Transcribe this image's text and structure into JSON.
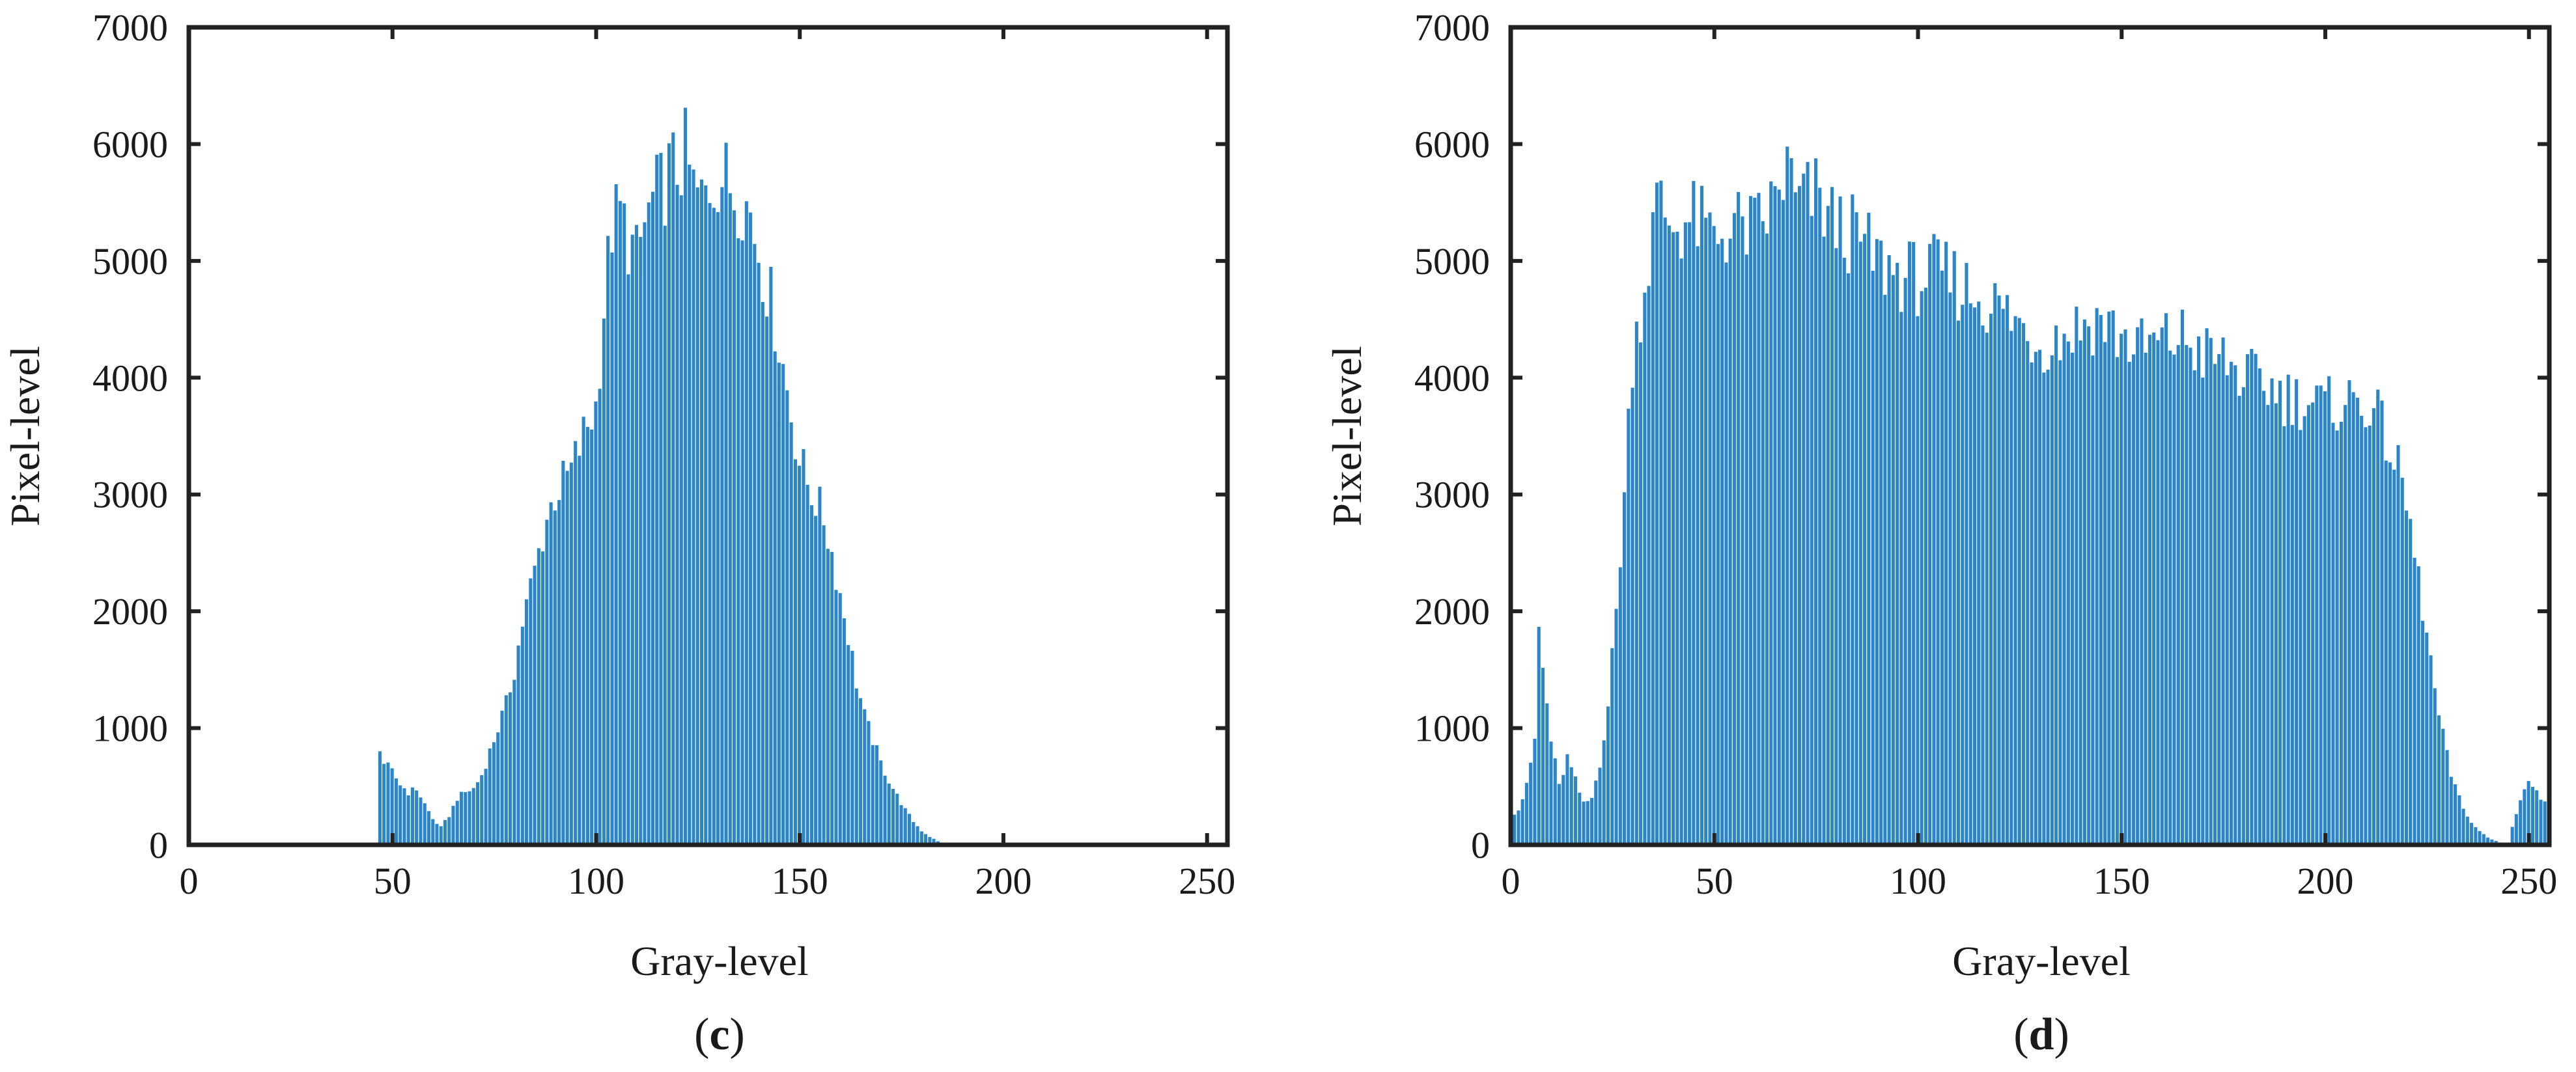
{
  "figure": {
    "panels": [
      {
        "id": "c",
        "label_open": "(",
        "label_letter": "c",
        "label_close": ")"
      },
      {
        "id": "d",
        "label_open": "(",
        "label_letter": "d",
        "label_close": ")"
      }
    ]
  },
  "colors": {
    "bar": "#2a86c8",
    "axis": "#222222"
  },
  "chart_data": [
    {
      "type": "bar",
      "panel": "(c)",
      "xlabel": "Gray-level",
      "ylabel": "Pixel-level",
      "xlim": [
        0,
        255
      ],
      "ylim": [
        0,
        7000
      ],
      "xticks": [
        0,
        50,
        100,
        150,
        200,
        250
      ],
      "xtick_labels": [
        "0",
        "50",
        "100",
        "150",
        "200",
        "250"
      ],
      "yticks": [
        0,
        1000,
        2000,
        3000,
        4000,
        5000,
        6000,
        7000
      ],
      "ytick_labels": [
        "0",
        "1000",
        "2000",
        "3000",
        "4000",
        "5000",
        "6000",
        "7000"
      ],
      "grid": false,
      "profile_points": [
        [
          0,
          0
        ],
        [
          46,
          0
        ],
        [
          47,
          850
        ],
        [
          48,
          700
        ],
        [
          50,
          620
        ],
        [
          52,
          520
        ],
        [
          54,
          450
        ],
        [
          56,
          480
        ],
        [
          58,
          350
        ],
        [
          60,
          220
        ],
        [
          62,
          150
        ],
        [
          64,
          250
        ],
        [
          66,
          400
        ],
        [
          68,
          450
        ],
        [
          70,
          480
        ],
        [
          72,
          600
        ],
        [
          74,
          800
        ],
        [
          76,
          1000
        ],
        [
          78,
          1200
        ],
        [
          80,
          1500
        ],
        [
          82,
          1900
        ],
        [
          84,
          2200
        ],
        [
          86,
          2500
        ],
        [
          88,
          2800
        ],
        [
          90,
          3000
        ],
        [
          92,
          3100
        ],
        [
          94,
          3200
        ],
        [
          96,
          3400
        ],
        [
          98,
          3600
        ],
        [
          100,
          3750
        ],
        [
          102,
          4600
        ],
        [
          104,
          5300
        ],
        [
          106,
          5400
        ],
        [
          108,
          5200
        ],
        [
          110,
          5000
        ],
        [
          112,
          5300
        ],
        [
          114,
          5500
        ],
        [
          116,
          5600
        ],
        [
          118,
          5750
        ],
        [
          120,
          5800
        ],
        [
          122,
          5900
        ],
        [
          124,
          5600
        ],
        [
          126,
          5500
        ],
        [
          128,
          5650
        ],
        [
          130,
          5750
        ],
        [
          132,
          5700
        ],
        [
          134,
          5600
        ],
        [
          136,
          5550
        ],
        [
          138,
          5400
        ],
        [
          140,
          5100
        ],
        [
          142,
          4800
        ],
        [
          144,
          4500
        ],
        [
          146,
          4100
        ],
        [
          148,
          3700
        ],
        [
          150,
          3300
        ],
        [
          152,
          3100
        ],
        [
          154,
          2950
        ],
        [
          156,
          2800
        ],
        [
          158,
          2500
        ],
        [
          160,
          2150
        ],
        [
          162,
          1800
        ],
        [
          164,
          1400
        ],
        [
          166,
          1100
        ],
        [
          168,
          900
        ],
        [
          170,
          700
        ],
        [
          172,
          550
        ],
        [
          174,
          420
        ],
        [
          176,
          300
        ],
        [
          178,
          200
        ],
        [
          180,
          120
        ],
        [
          182,
          70
        ],
        [
          184,
          30
        ],
        [
          186,
          10
        ],
        [
          188,
          0
        ],
        [
          255,
          0
        ]
      ]
    },
    {
      "type": "bar",
      "panel": "(d)",
      "xlabel": "Gray-level",
      "ylabel": "Pixel-level",
      "xlim": [
        0,
        255
      ],
      "ylim": [
        0,
        7000
      ],
      "xticks": [
        0,
        50,
        100,
        150,
        200,
        250
      ],
      "xtick_labels": [
        "0",
        "50",
        "100",
        "150",
        "200",
        "250"
      ],
      "yticks": [
        0,
        1000,
        2000,
        3000,
        4000,
        5000,
        6000,
        7000
      ],
      "ytick_labels": [
        "0",
        "1000",
        "2000",
        "3000",
        "4000",
        "5000",
        "6000",
        "7000"
      ],
      "grid": false,
      "profile_points": [
        [
          0,
          250
        ],
        [
          2,
          300
        ],
        [
          4,
          500
        ],
        [
          6,
          900
        ],
        [
          7,
          1850
        ],
        [
          8,
          1500
        ],
        [
          10,
          900
        ],
        [
          12,
          500
        ],
        [
          14,
          750
        ],
        [
          16,
          550
        ],
        [
          18,
          350
        ],
        [
          20,
          400
        ],
        [
          22,
          700
        ],
        [
          24,
          1200
        ],
        [
          26,
          2000
        ],
        [
          28,
          3000
        ],
        [
          30,
          4200
        ],
        [
          32,
          4600
        ],
        [
          34,
          5000
        ],
        [
          36,
          5500
        ],
        [
          38,
          5400
        ],
        [
          40,
          5300
        ],
        [
          45,
          5350
        ],
        [
          50,
          5200
        ],
        [
          55,
          5300
        ],
        [
          60,
          5250
        ],
        [
          65,
          5500
        ],
        [
          68,
          5800
        ],
        [
          70,
          5500
        ],
        [
          75,
          5550
        ],
        [
          80,
          5300
        ],
        [
          85,
          5200
        ],
        [
          90,
          5000
        ],
        [
          95,
          4900
        ],
        [
          100,
          4850
        ],
        [
          105,
          4900
        ],
        [
          110,
          4800
        ],
        [
          115,
          4700
        ],
        [
          120,
          4600
        ],
        [
          125,
          4450
        ],
        [
          130,
          4300
        ],
        [
          135,
          4350
        ],
        [
          140,
          4450
        ],
        [
          145,
          4500
        ],
        [
          150,
          4350
        ],
        [
          155,
          4250
        ],
        [
          160,
          4300
        ],
        [
          165,
          4350
        ],
        [
          170,
          4200
        ],
        [
          175,
          4150
        ],
        [
          180,
          4000
        ],
        [
          185,
          3950
        ],
        [
          190,
          3850
        ],
        [
          195,
          3800
        ],
        [
          200,
          3750
        ],
        [
          205,
          3800
        ],
        [
          210,
          3800
        ],
        [
          213,
          3650
        ],
        [
          216,
          3400
        ],
        [
          219,
          3100
        ],
        [
          222,
          2500
        ],
        [
          225,
          1800
        ],
        [
          228,
          1100
        ],
        [
          231,
          600
        ],
        [
          234,
          300
        ],
        [
          237,
          150
        ],
        [
          240,
          60
        ],
        [
          243,
          20
        ],
        [
          245,
          0
        ],
        [
          246,
          150
        ],
        [
          248,
          400
        ],
        [
          250,
          550
        ],
        [
          252,
          450
        ],
        [
          254,
          350
        ],
        [
          255,
          300
        ]
      ]
    }
  ]
}
